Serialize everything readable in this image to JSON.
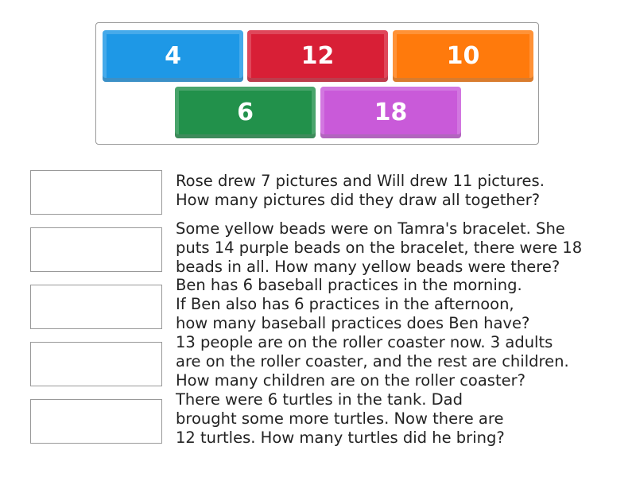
{
  "tiles": [
    {
      "label": "4",
      "color": "#1e98e6"
    },
    {
      "label": "12",
      "color": "#d81f36"
    },
    {
      "label": "10",
      "color": "#ff7a0c"
    },
    {
      "label": "6",
      "color": "#22914b"
    },
    {
      "label": "18",
      "color": "#c95ad9"
    }
  ],
  "questions": [
    "Rose drew 7 pictures and Will drew 11 pictures.\nHow many pictures did they draw all together?",
    "Some yellow beads were on Tamra's bracelet. She\nputs 14 purple beads on the bracelet, there were 18\nbeads in all. How many yellow beads were there?",
    "Ben has 6 baseball practices in the morning.\nIf Ben also has 6 practices in the afternoon,\nhow many baseball practices does Ben have?",
    "13 people are on the roller coaster now. 3 adults\nare on the roller coaster, and the rest are children.\nHow many children are on the roller coaster?",
    "There were 6 turtles in the tank. Dad\nbrought some more turtles. Now there are\n12 turtles. How many turtles did he bring?"
  ]
}
